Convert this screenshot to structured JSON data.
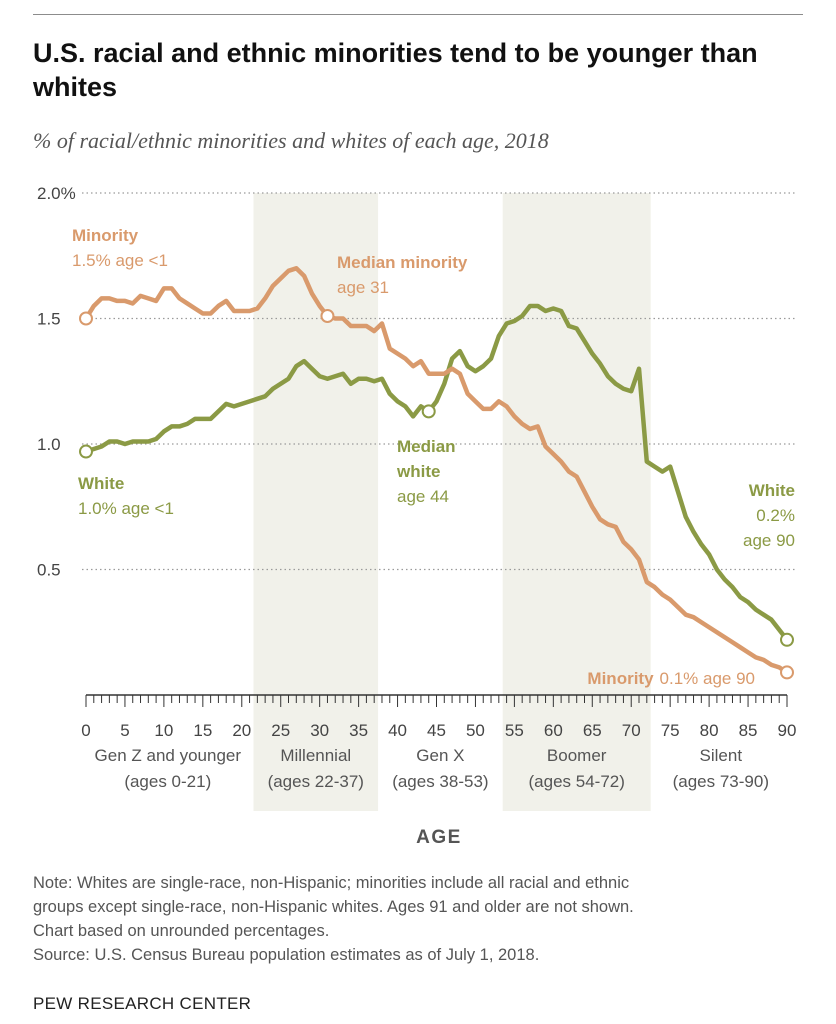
{
  "header": {
    "title": "U.S. racial and ethnic minorities tend to be younger than whites",
    "subtitle": "% of racial/ethnic minorities and whites of each age, 2018"
  },
  "chart_data": {
    "type": "line",
    "xlabel": "AGE",
    "ylabel": "",
    "xlim": [
      0,
      90
    ],
    "ylim": [
      0,
      2.0
    ],
    "y_ticks": [
      "2.0%",
      "1.5",
      "1.0",
      "0.5"
    ],
    "x_ticks": [
      "0",
      "5",
      "10",
      "15",
      "20",
      "25",
      "30",
      "35",
      "40",
      "45",
      "50",
      "55",
      "60",
      "65",
      "70",
      "75",
      "80",
      "85",
      "90"
    ],
    "grid": "horizontal dotted",
    "generations": [
      {
        "name": "Gen Z and younger",
        "range": "(ages 0-21)",
        "from": 0,
        "to": 21,
        "shaded": false
      },
      {
        "name": "Millennial",
        "range": "(ages 22-37)",
        "from": 22,
        "to": 37,
        "shaded": true
      },
      {
        "name": "Gen X",
        "range": "(ages 38-53)",
        "from": 38,
        "to": 53,
        "shaded": false
      },
      {
        "name": "Boomer",
        "range": "(ages 54-72)",
        "from": 54,
        "to": 72,
        "shaded": true
      },
      {
        "name": "Silent",
        "range": "(ages 73-90)",
        "from": 73,
        "to": 90,
        "shaded": false
      }
    ],
    "x": [
      0,
      1,
      2,
      3,
      4,
      5,
      6,
      7,
      8,
      9,
      10,
      11,
      12,
      13,
      14,
      15,
      16,
      17,
      18,
      19,
      20,
      21,
      22,
      23,
      24,
      25,
      26,
      27,
      28,
      29,
      30,
      31,
      32,
      33,
      34,
      35,
      36,
      37,
      38,
      39,
      40,
      41,
      42,
      43,
      44,
      45,
      46,
      47,
      48,
      49,
      50,
      51,
      52,
      53,
      54,
      55,
      56,
      57,
      58,
      59,
      60,
      61,
      62,
      63,
      64,
      65,
      66,
      67,
      68,
      69,
      70,
      71,
      72,
      73,
      74,
      75,
      76,
      77,
      78,
      79,
      80,
      81,
      82,
      83,
      84,
      85,
      86,
      87,
      88,
      89,
      90
    ],
    "series": [
      {
        "name": "Minority",
        "color": "#d99a6c",
        "values": [
          1.5,
          1.55,
          1.58,
          1.58,
          1.57,
          1.57,
          1.56,
          1.59,
          1.58,
          1.57,
          1.62,
          1.62,
          1.58,
          1.56,
          1.54,
          1.52,
          1.52,
          1.55,
          1.57,
          1.53,
          1.53,
          1.53,
          1.54,
          1.58,
          1.63,
          1.66,
          1.69,
          1.7,
          1.67,
          1.6,
          1.55,
          1.51,
          1.5,
          1.5,
          1.47,
          1.47,
          1.47,
          1.45,
          1.48,
          1.38,
          1.36,
          1.34,
          1.31,
          1.33,
          1.28,
          1.28,
          1.28,
          1.3,
          1.28,
          1.2,
          1.17,
          1.14,
          1.14,
          1.17,
          1.15,
          1.11,
          1.08,
          1.06,
          1.07,
          0.99,
          0.96,
          0.93,
          0.89,
          0.87,
          0.81,
          0.75,
          0.7,
          0.68,
          0.67,
          0.61,
          0.58,
          0.54,
          0.45,
          0.43,
          0.4,
          0.38,
          0.35,
          0.32,
          0.31,
          0.29,
          0.27,
          0.25,
          0.23,
          0.21,
          0.19,
          0.17,
          0.15,
          0.14,
          0.12,
          0.11,
          0.09
        ]
      },
      {
        "name": "White",
        "color": "#8b9a45",
        "values": [
          0.97,
          0.98,
          0.99,
          1.01,
          1.01,
          1.0,
          1.01,
          1.01,
          1.01,
          1.02,
          1.05,
          1.07,
          1.07,
          1.08,
          1.1,
          1.1,
          1.1,
          1.13,
          1.16,
          1.15,
          1.16,
          1.17,
          1.18,
          1.19,
          1.22,
          1.24,
          1.26,
          1.31,
          1.33,
          1.3,
          1.27,
          1.26,
          1.27,
          1.28,
          1.24,
          1.26,
          1.26,
          1.25,
          1.26,
          1.2,
          1.17,
          1.15,
          1.11,
          1.15,
          1.13,
          1.17,
          1.24,
          1.34,
          1.37,
          1.31,
          1.29,
          1.31,
          1.34,
          1.43,
          1.48,
          1.49,
          1.51,
          1.55,
          1.55,
          1.53,
          1.54,
          1.53,
          1.47,
          1.46,
          1.41,
          1.36,
          1.32,
          1.27,
          1.24,
          1.22,
          1.21,
          1.3,
          0.93,
          0.91,
          0.89,
          0.91,
          0.81,
          0.71,
          0.65,
          0.6,
          0.56,
          0.5,
          0.46,
          0.43,
          0.39,
          0.37,
          0.34,
          0.32,
          0.3,
          0.26,
          0.22
        ]
      }
    ],
    "annotations": {
      "minority_start": {
        "title": "Minority",
        "text": "1.5% age <1"
      },
      "minority_median": {
        "title": "Median minority",
        "text": "age 31"
      },
      "white_start": {
        "title": "White",
        "text": "1.0% age <1"
      },
      "white_median": {
        "title": "Median",
        "title2": "white",
        "text": "age 44"
      },
      "white_end": {
        "title": "White",
        "text": "0.2%",
        "text2": "age 90"
      },
      "minority_end": {
        "title": "Minority",
        "text": "0.1% age 90"
      }
    }
  },
  "footer": {
    "note_lines": [
      "Note: Whites are single-race, non-Hispanic; minorities include all racial and ethnic",
      "groups except single-race, non-Hispanic whites. Ages 91 and older are not shown.",
      "Chart based on unrounded percentages."
    ],
    "source": "Source: U.S. Census Bureau population estimates as of July 1, 2018.",
    "credit": "PEW RESEARCH CENTER"
  }
}
